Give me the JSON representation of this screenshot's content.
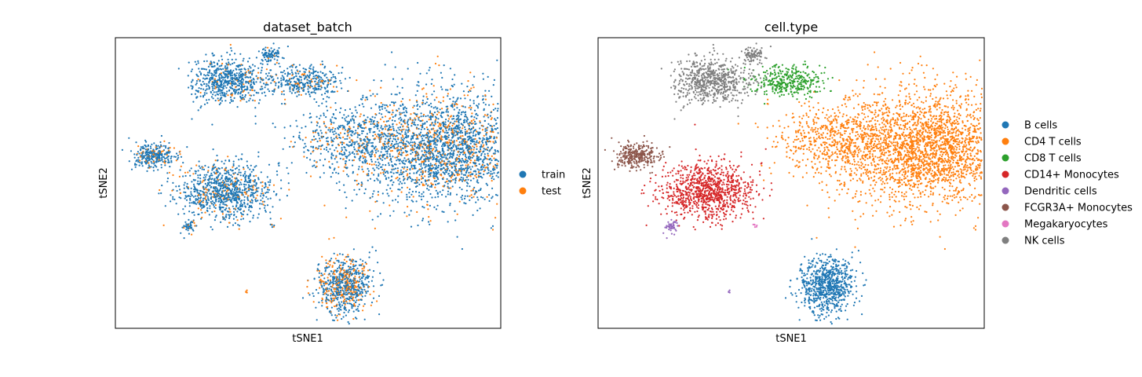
{
  "chart_data": [
    {
      "type": "scatter",
      "title": "dataset_batch",
      "xlabel": "tSNE1",
      "ylabel": "tSNE2",
      "ticks": "none",
      "legend_placement": "right",
      "series": [
        {
          "name": "train",
          "color": "#1f77b4"
        },
        {
          "name": "test",
          "color": "#ff7f0e"
        }
      ]
    },
    {
      "type": "scatter",
      "title": "cell.type",
      "xlabel": "tSNE1",
      "ylabel": "tSNE2",
      "ticks": "none",
      "legend_placement": "right",
      "series": [
        {
          "name": "B cells",
          "color": "#1f77b4"
        },
        {
          "name": "CD4 T cells",
          "color": "#ff7f0e"
        },
        {
          "name": "CD8 T cells",
          "color": "#2ca02c"
        },
        {
          "name": "CD14+ Monocytes",
          "color": "#d62728"
        },
        {
          "name": "Dendritic cells",
          "color": "#9467bd"
        },
        {
          "name": "FCGR3A+ Monocytes",
          "color": "#8c564b"
        },
        {
          "name": "Megakaryocytes",
          "color": "#e377c2"
        },
        {
          "name": "NK cells",
          "color": "#7f7f7f"
        }
      ]
    }
  ]
}
